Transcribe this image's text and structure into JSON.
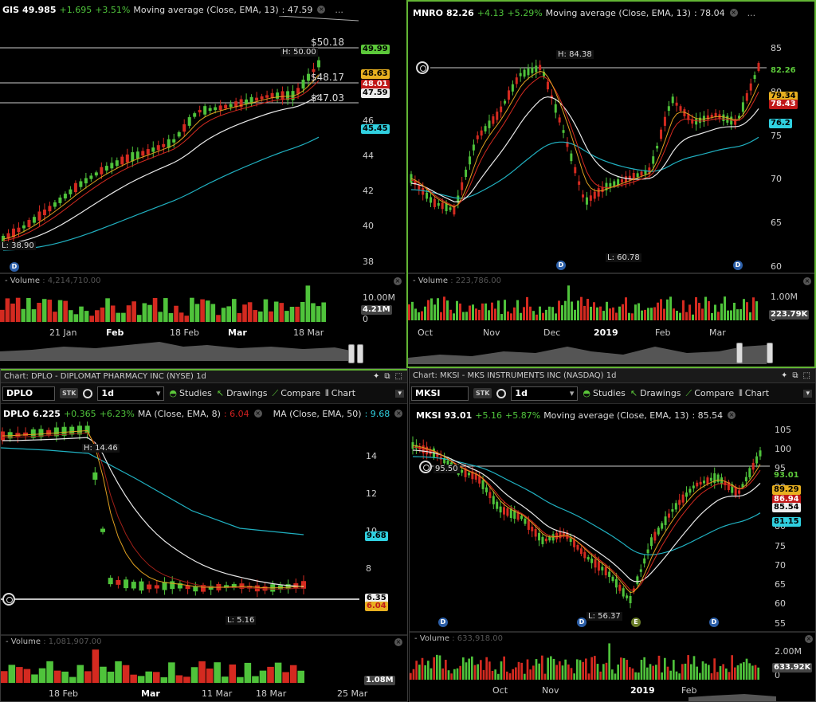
{
  "panels": {
    "gis": {
      "symbol": "GIS",
      "price": "49.985",
      "change": "+1.695",
      "change_pct": "+3.51%",
      "study": "Moving average (Close, EMA, 13)",
      "study_val": ": 47.59",
      "hi_label": "H: 50.00",
      "lo_label": "L: 38.90",
      "level1": "$50.18",
      "level2": "$48.17",
      "level3": "$47.03",
      "tags": {
        "t1": "49.99",
        "t2": "48.63",
        "t3": "48.01",
        "t4": "47.59",
        "t5": "45.45"
      },
      "y_ticks": [
        "46",
        "44",
        "42",
        "40",
        "38"
      ],
      "volume_label": "Volume",
      "volume_value": ": 4,214,710.00",
      "vol_scale": "10.00M",
      "vol_tag": "4.21M",
      "vol_zero": "0",
      "x_ticks": [
        "21 Jan",
        "Feb",
        "18 Feb",
        "Mar",
        "18 Mar"
      ]
    },
    "mnro": {
      "symbol": "MNRO",
      "price": "82.26",
      "change": "+4.13",
      "change_pct": "+5.29%",
      "study": "Moving average (Close, EMA, 13)",
      "study_val": ": 78.04",
      "hi_label": "H: 84.38",
      "lo_label": "L: 60.78",
      "tags": {
        "t1": "82.26",
        "t2": "79.34",
        "t3": "78.43",
        "t4": "76.2"
      },
      "y_ticks": [
        "85",
        "80",
        "75",
        "70",
        "65",
        "60"
      ],
      "volume_label": "Volume",
      "volume_value": ": 223,786.00",
      "vol_scale": "1.00M",
      "vol_tag": "223.79K",
      "vol_zero": "0",
      "x_ticks": [
        "Oct",
        "Nov",
        "Dec",
        "2019",
        "Feb",
        "Mar"
      ]
    },
    "dplo": {
      "title": "Chart: DPLO - DIPLOMAT PHARMACY INC (NYSE) 1d",
      "symbol_field": "DPLO",
      "interval": "1d",
      "toolbar": {
        "studies": "Studies",
        "drawings": "Drawings",
        "compare": "Compare",
        "chart": "Chart"
      },
      "symbol": "DPLO",
      "price": "6.225",
      "change": "+0.365",
      "change_pct": "+6.23%",
      "study1": "MA (Close, EMA, 8)",
      "study1_val": ": 6.04",
      "study2": "MA (Close, EMA, 50)",
      "study2_val": ": 9.68",
      "hi_label": "H: 14.46",
      "lo_label": "L: 5.16",
      "tags": {
        "t1": "9.68",
        "t2": "6.35",
        "t3": "6.04"
      },
      "y_ticks": [
        "14",
        "12",
        "10",
        "8"
      ],
      "volume_label": "Volume",
      "volume_value": ": 1,081,907.00",
      "vol_tag": "1.08M",
      "x_ticks": [
        "18 Feb",
        "Mar",
        "11 Mar",
        "18 Mar",
        "25 Mar"
      ]
    },
    "mksi": {
      "title": "Chart: MKSI - MKS INSTRUMENTS INC (NASDAQ) 1d",
      "symbol_field": "MKSI",
      "interval": "1d",
      "toolbar": {
        "studies": "Studies",
        "drawings": "Drawings",
        "compare": "Compare",
        "chart": "Chart"
      },
      "symbol": "MKSI",
      "price": "93.01",
      "change": "+5.16",
      "change_pct": "+5.87%",
      "study": "Moving average (Close, EMA, 13)",
      "study_val": ": 85.54",
      "hi_label": "95.50",
      "lo_label": "L: 56.37",
      "tags": {
        "t1": "93.01",
        "t2": "89.29",
        "t3": "86.94",
        "t4": "85.54",
        "t5": "81.15"
      },
      "y_ticks": [
        "105",
        "100",
        "95",
        "90",
        "85",
        "80",
        "75",
        "70",
        "65",
        "60",
        "55"
      ],
      "volume_label": "Volume",
      "volume_value": ": 633,918.00",
      "vol_scale": "2.00M",
      "vol_tag": "633.92K",
      "vol_zero": "0",
      "x_ticks": [
        "Oct",
        "Nov",
        "2019",
        "Feb"
      ]
    }
  },
  "colors": {
    "up": "#4fc33b",
    "down": "#d42a20",
    "ema13": "#e0a020",
    "ema_white": "#e8e8e8",
    "ema_cyan": "#20b0c0",
    "select": "#62b534"
  },
  "icons": {
    "alert": "alert-bell-icon",
    "dividend": "d-marker-icon",
    "close": "close-circle-icon"
  }
}
